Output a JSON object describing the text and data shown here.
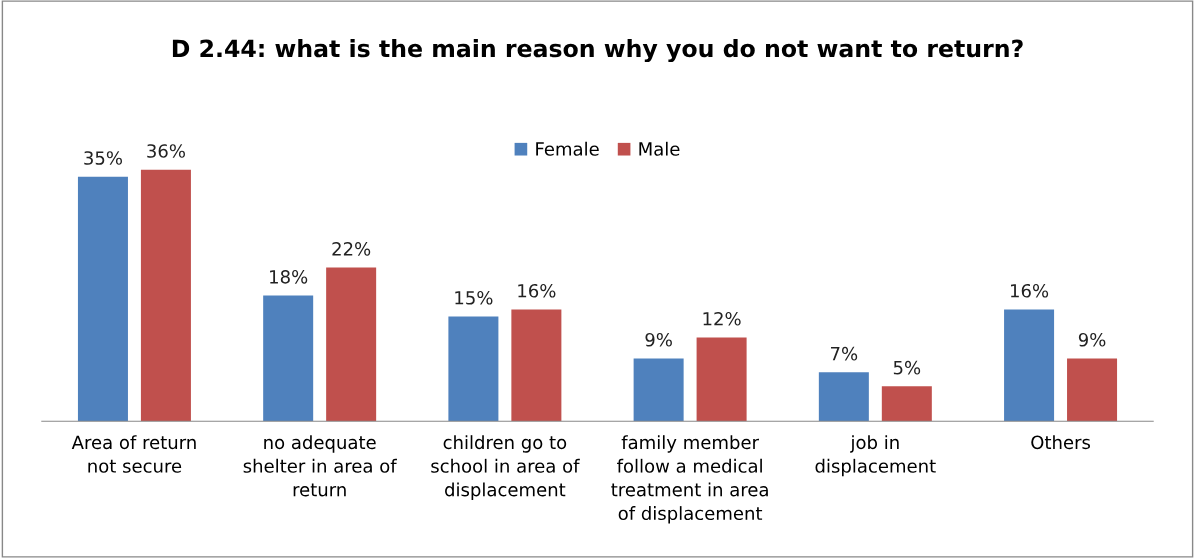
{
  "chart_data": {
    "type": "bar",
    "title": "D 2.44: what is the main reason why you do not want to return?",
    "categories": [
      "Area of return\nnot secure",
      "no adequate\nshelter in area of\nreturn",
      "children go to\nschool in area of\ndisplacement",
      "family member\nfollow a medical\ntreatment in area\nof displacement",
      "job in\ndisplacement",
      "Others"
    ],
    "series": [
      {
        "name": "Female",
        "color": "#4f81bd",
        "values": [
          35,
          18,
          15,
          9,
          7,
          16
        ],
        "value_labels": [
          "35%",
          "18%",
          "15%",
          "9%",
          "7%",
          "16%"
        ]
      },
      {
        "name": "Male",
        "color": "#c0504d",
        "values": [
          36,
          22,
          16,
          12,
          5,
          9
        ],
        "value_labels": [
          "36%",
          "22%",
          "16%",
          "12%",
          "5%",
          "9%"
        ]
      }
    ],
    "legend": "top",
    "grid": false
  }
}
